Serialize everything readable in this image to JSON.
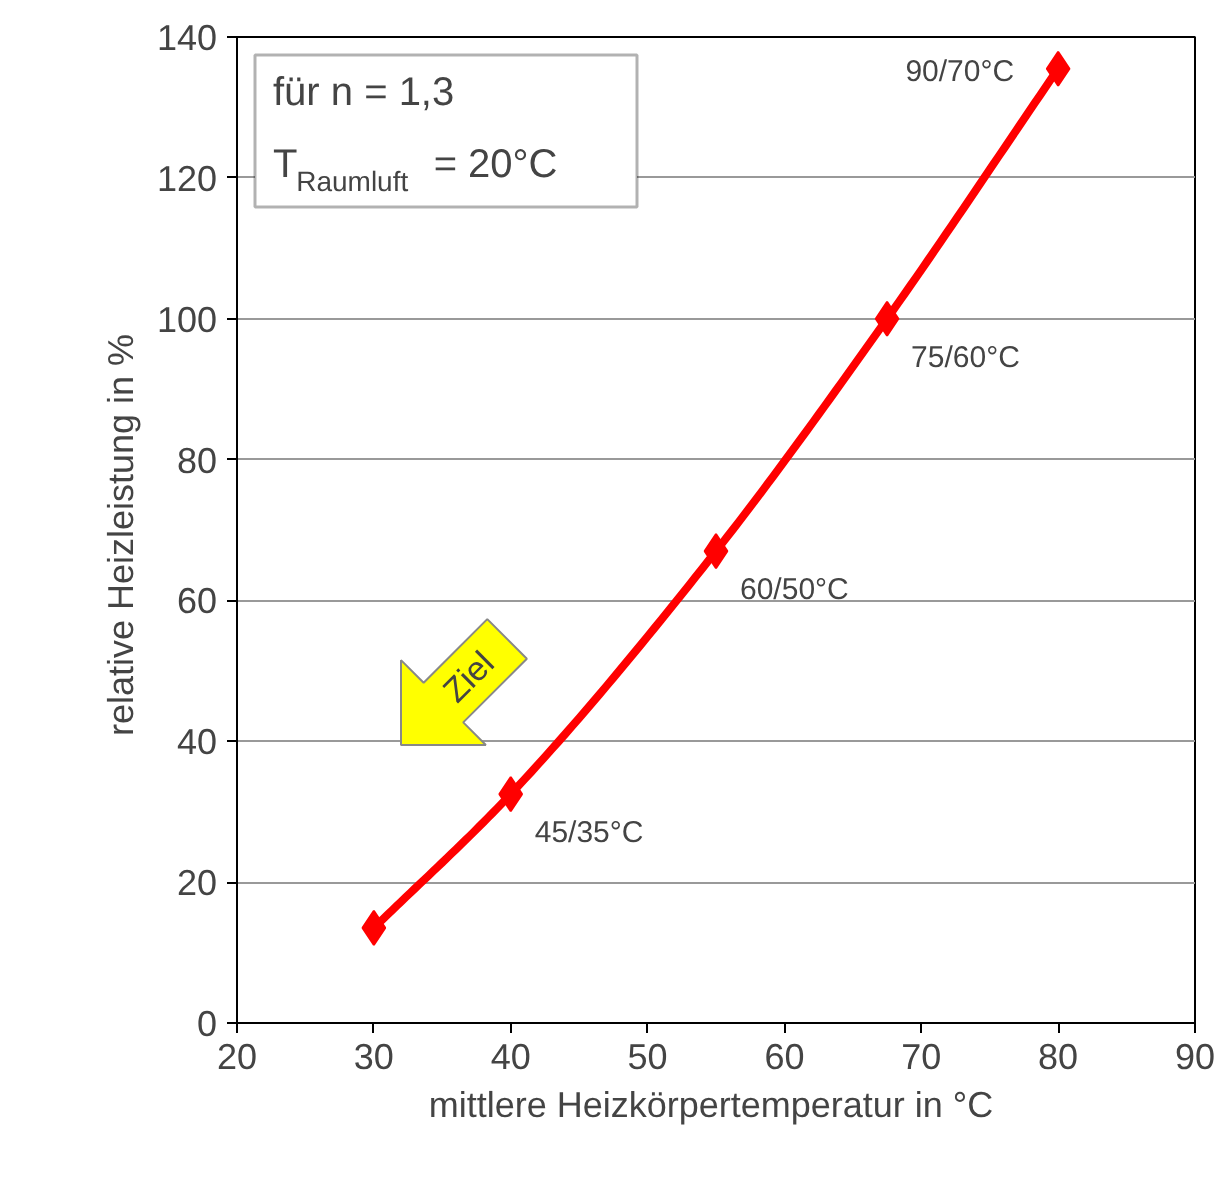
{
  "chart_data": {
    "type": "line",
    "xlabel": "mittlere Heizkörpertemperatur  in °C",
    "ylabel": "relative Heizleistung  in %",
    "x": [
      30,
      40,
      55,
      67.5,
      80
    ],
    "series": [
      {
        "color": "#ff0000",
        "values": [
          13.5,
          32.5,
          67,
          100,
          135.5
        ]
      }
    ],
    "marker": "diamond",
    "line_style": "solid",
    "grid": "y",
    "xlim": [
      20,
      90
    ],
    "ylim": [
      0,
      140
    ],
    "xticks": [
      20,
      30,
      40,
      50,
      60,
      70,
      80,
      90
    ],
    "yticks": [
      0,
      20,
      40,
      60,
      80,
      100,
      120,
      140
    ],
    "annotations": [
      "für n = 1,3",
      "T$_{Raumluft}$ = 20°C",
      {
        "text": "45/35°C",
        "x": 40,
        "y": 32.5
      },
      {
        "text": "60/50°C",
        "x": 55,
        "y": 67
      },
      {
        "text": "75/60°C",
        "x": 67.5,
        "y": 100
      },
      {
        "text": "90/70°C",
        "x": 80,
        "y": 135.5
      },
      "Ziel"
    ]
  }
}
